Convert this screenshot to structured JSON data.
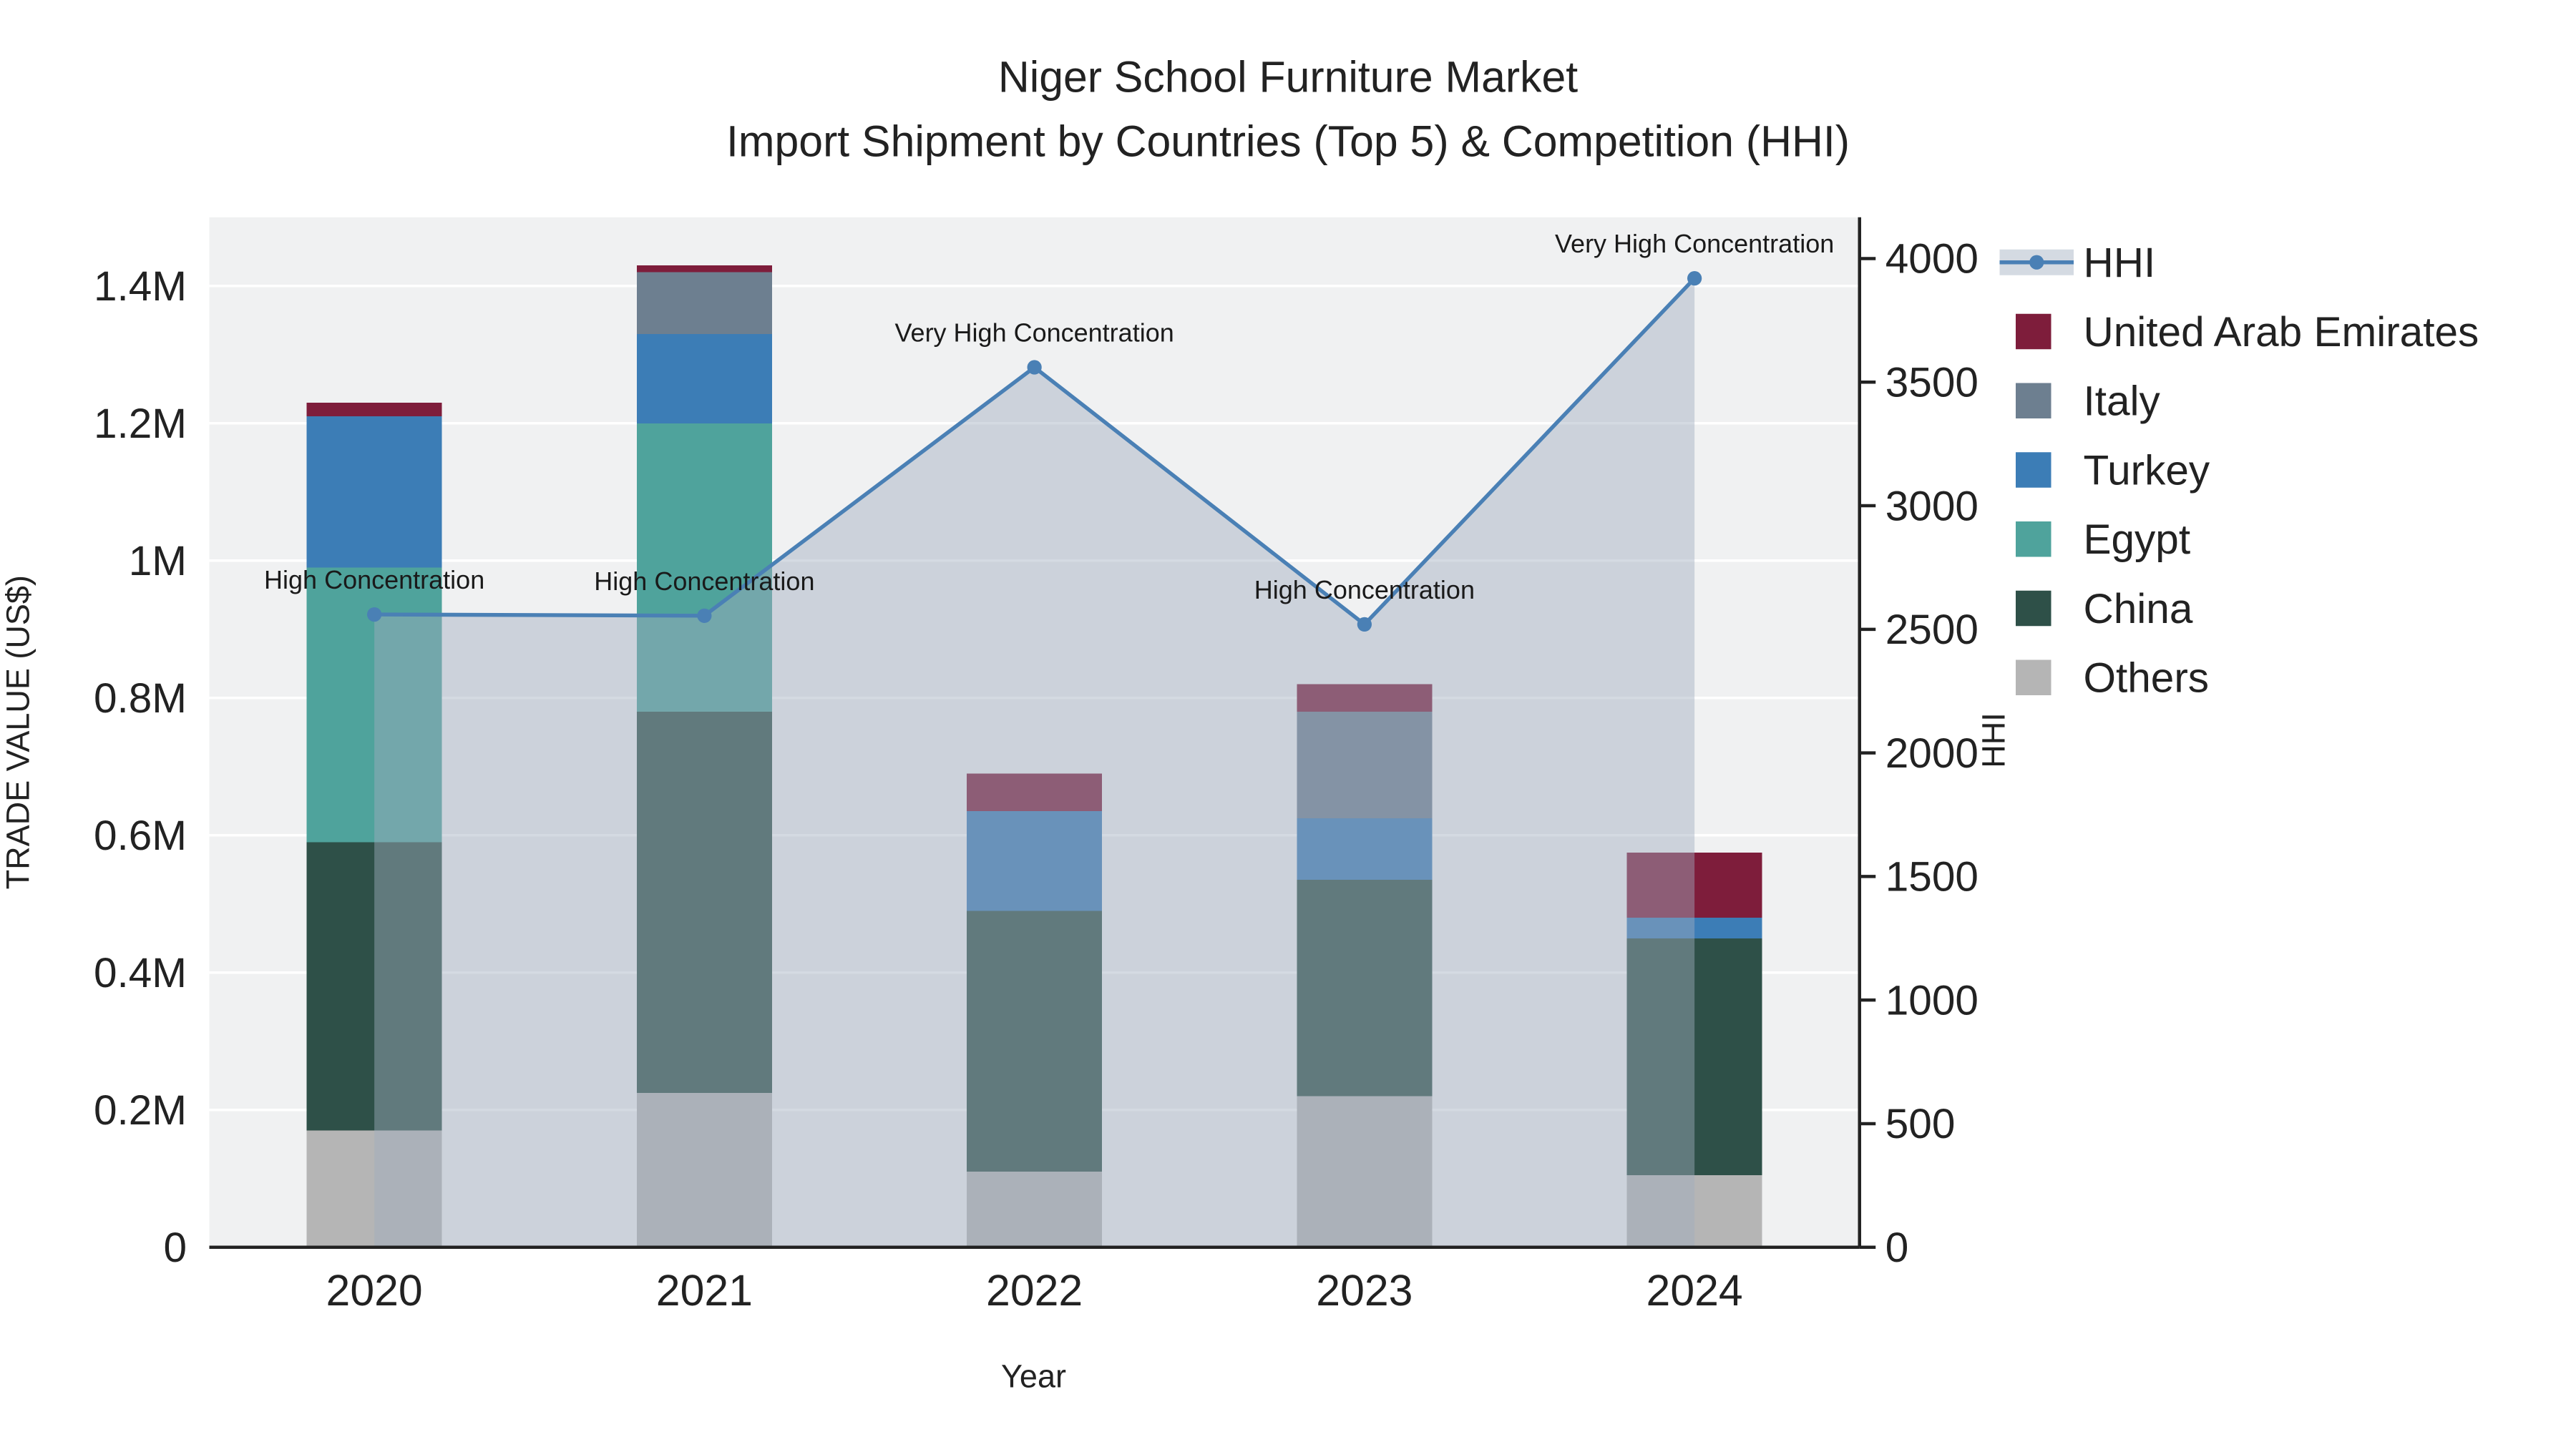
{
  "chart_data": {
    "type": "bar+line",
    "title_lines": [
      "Niger School Furniture Market",
      "Import Shipment by Countries (Top 5) & Competition (HHI)"
    ],
    "categories": [
      "2020",
      "2021",
      "2022",
      "2023",
      "2024"
    ],
    "x_axis": {
      "title": "Year"
    },
    "left_axis": {
      "title": "TRADE VALUE (US$)",
      "max": 1500000,
      "ticks": [
        {
          "value": 0,
          "label": "0"
        },
        {
          "value": 200000,
          "label": "0.2M"
        },
        {
          "value": 400000,
          "label": "0.4M"
        },
        {
          "value": 600000,
          "label": "0.6M"
        },
        {
          "value": 800000,
          "label": "0.8M"
        },
        {
          "value": 1000000,
          "label": "1M"
        },
        {
          "value": 1200000,
          "label": "1.2M"
        },
        {
          "value": 1400000,
          "label": "1.4M"
        }
      ]
    },
    "right_axis": {
      "title": "HHI",
      "max": 4167,
      "ticks": [
        {
          "value": 0,
          "label": "0"
        },
        {
          "value": 500,
          "label": "500"
        },
        {
          "value": 1000,
          "label": "1000"
        },
        {
          "value": 1500,
          "label": "1500"
        },
        {
          "value": 2000,
          "label": "2000"
        },
        {
          "value": 2500,
          "label": "2500"
        },
        {
          "value": 3000,
          "label": "3000"
        },
        {
          "value": 3500,
          "label": "3500"
        },
        {
          "value": 4000,
          "label": "4000"
        }
      ]
    },
    "bar_series": [
      {
        "name": "Others",
        "color": "#b5b5b5",
        "values": [
          170000,
          225000,
          110000,
          220000,
          105000
        ]
      },
      {
        "name": "China",
        "color": "#2e5048",
        "values": [
          420000,
          555000,
          380000,
          315000,
          345000
        ]
      },
      {
        "name": "Egypt",
        "color": "#4fa39c",
        "values": [
          400000,
          420000,
          0,
          0,
          0
        ]
      },
      {
        "name": "Turkey",
        "color": "#3c7db6",
        "values": [
          220000,
          130000,
          145000,
          90000,
          30000
        ]
      },
      {
        "name": "Italy",
        "color": "#6d7f90",
        "values": [
          0,
          90000,
          0,
          155000,
          0
        ]
      },
      {
        "name": "United Arab Emirates",
        "color": "#7e1d3b",
        "values": [
          20000,
          10000,
          55000,
          40000,
          95000
        ]
      }
    ],
    "line_series": {
      "name": "HHI",
      "color": "#4a80b5",
      "fill_color": "#a0aebf",
      "values": [
        2560,
        2555,
        3560,
        2520,
        3920
      ]
    },
    "annotations": [
      "High Concentration",
      "High Concentration",
      "Very High Concentration",
      "High Concentration",
      "Very High Concentration"
    ],
    "legend": [
      {
        "name": "HHI",
        "color": "#4a80b5",
        "type": "line"
      },
      {
        "name": "United Arab Emirates",
        "color": "#7e1d3b",
        "type": "square"
      },
      {
        "name": "Italy",
        "color": "#6d7f90",
        "type": "square"
      },
      {
        "name": "Turkey",
        "color": "#3c7db6",
        "type": "square"
      },
      {
        "name": "Egypt",
        "color": "#4fa39c",
        "type": "square"
      },
      {
        "name": "China",
        "color": "#2e5048",
        "type": "square"
      },
      {
        "name": "Others",
        "color": "#b5b5b5",
        "type": "square"
      }
    ],
    "colors": {
      "plot_bg": "#f0f1f2",
      "gridline": "#ffffff",
      "axis_line": "#222222"
    }
  }
}
